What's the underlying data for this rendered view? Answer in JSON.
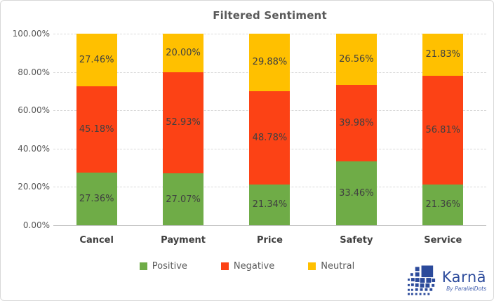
{
  "chart_data": {
    "type": "bar",
    "subtype": "stacked-100-percent",
    "title": "Filtered Sentiment",
    "categories": [
      "Cancel",
      "Payment",
      "Price",
      "Safety",
      "Service"
    ],
    "series": [
      {
        "name": "Positive",
        "color": "#6FAC47",
        "values": [
          27.36,
          27.07,
          21.34,
          33.46,
          21.36
        ]
      },
      {
        "name": "Negative",
        "color": "#FC4215",
        "values": [
          45.18,
          52.93,
          48.78,
          39.98,
          56.81
        ]
      },
      {
        "name": "Neutral",
        "color": "#FFC000",
        "values": [
          27.46,
          20.0,
          29.88,
          26.56,
          21.83
        ]
      }
    ],
    "value_labels": [
      [
        "27.36%",
        "27.07%",
        "21.34%",
        "33.46%",
        "21.36%"
      ],
      [
        "45.18%",
        "52.93%",
        "48.78%",
        "39.98%",
        "56.81%"
      ],
      [
        "27.46%",
        "20.00%",
        "29.88%",
        "26.56%",
        "21.83%"
      ]
    ],
    "y_ticks": [
      "100.00%",
      "80.00%",
      "60.00%",
      "40.00%",
      "20.00%",
      "0.00%"
    ],
    "ylim": [
      0,
      100
    ],
    "xlabel": "",
    "ylabel": "",
    "grid": "horizontal-dashed",
    "legend_position": "bottom"
  },
  "logo": {
    "brand": "Karnā",
    "byline": "By ParallelDots",
    "color": "#2B4A9B",
    "icon": "karna-mosaic-icon"
  }
}
